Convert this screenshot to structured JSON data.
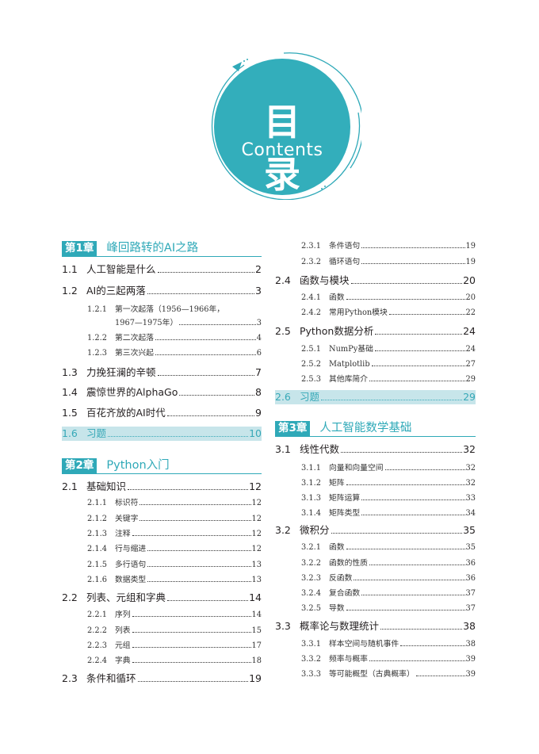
{
  "header": {
    "title": "目录",
    "subtitle": "Contents"
  },
  "colors": {
    "accent": "#2fa9b8",
    "highlight": "#c7e5ea"
  },
  "left": [
    {
      "type": "chapter",
      "tag": "第1章",
      "title": "峰回路转的AI之路"
    },
    {
      "level": 1,
      "num": "1.1",
      "title": "人工智能是什么",
      "page": "2"
    },
    {
      "level": 1,
      "num": "1.2",
      "title": "AI的三起两落",
      "page": "3"
    },
    {
      "level": 2,
      "num": "1.2.1",
      "title": "第一次起落（1956—1966年，",
      "page": ""
    },
    {
      "level": 2,
      "num": "",
      "title": "1967—1975年）",
      "page": "3"
    },
    {
      "level": 2,
      "num": "1.2.2",
      "title": "第二次起落",
      "page": "4"
    },
    {
      "level": 2,
      "num": "1.2.3",
      "title": "第三次兴起",
      "page": "6"
    },
    {
      "level": 1,
      "num": "1.3",
      "title": "力挽狂澜的辛顿",
      "page": "7"
    },
    {
      "level": 1,
      "num": "1.4",
      "title": "震惊世界的AlphaGo",
      "page": "8"
    },
    {
      "level": 1,
      "num": "1.5",
      "title": "百花齐放的AI时代",
      "page": "9"
    },
    {
      "level": 1,
      "num": "1.6",
      "title": "习题",
      "page": "10",
      "highlight": true
    },
    {
      "type": "chapter",
      "tag": "第2章",
      "title": "Python入门"
    },
    {
      "level": 1,
      "num": "2.1",
      "title": "基础知识",
      "page": "12"
    },
    {
      "level": 2,
      "num": "2.1.1",
      "title": "标识符",
      "page": "12"
    },
    {
      "level": 2,
      "num": "2.1.2",
      "title": "关键字",
      "page": "12"
    },
    {
      "level": 2,
      "num": "2.1.3",
      "title": "注释",
      "page": "12"
    },
    {
      "level": 2,
      "num": "2.1.4",
      "title": "行与缩进",
      "page": "12"
    },
    {
      "level": 2,
      "num": "2.1.5",
      "title": "多行语句",
      "page": "13"
    },
    {
      "level": 2,
      "num": "2.1.6",
      "title": "数据类型",
      "page": "13"
    },
    {
      "level": 1,
      "num": "2.2",
      "title": "列表、元组和字典",
      "page": "14"
    },
    {
      "level": 2,
      "num": "2.2.1",
      "title": "序列",
      "page": "14"
    },
    {
      "level": 2,
      "num": "2.2.2",
      "title": "列表",
      "page": "15"
    },
    {
      "level": 2,
      "num": "2.2.3",
      "title": "元组",
      "page": "17"
    },
    {
      "level": 2,
      "num": "2.2.4",
      "title": "字典",
      "page": "18"
    },
    {
      "level": 1,
      "num": "2.3",
      "title": "条件和循环",
      "page": "19"
    }
  ],
  "right": [
    {
      "level": 2,
      "num": "2.3.1",
      "title": "条件语句",
      "page": "19"
    },
    {
      "level": 2,
      "num": "2.3.2",
      "title": "循环语句",
      "page": "19"
    },
    {
      "level": 1,
      "num": "2.4",
      "title": "函数与模块",
      "page": "20"
    },
    {
      "level": 2,
      "num": "2.4.1",
      "title": "函数",
      "page": "20"
    },
    {
      "level": 2,
      "num": "2.4.2",
      "title": "常用Python模块",
      "page": "22"
    },
    {
      "level": 1,
      "num": "2.5",
      "title": "Python数据分析",
      "page": "24"
    },
    {
      "level": 2,
      "num": "2.5.1",
      "title": "NumPy基础",
      "page": "24"
    },
    {
      "level": 2,
      "num": "2.5.2",
      "title": "Matplotlib",
      "page": "27"
    },
    {
      "level": 2,
      "num": "2.5.3",
      "title": "其他库简介",
      "page": "29"
    },
    {
      "level": 1,
      "num": "2.6",
      "title": "习题",
      "page": "29",
      "highlight": true
    },
    {
      "type": "chapter",
      "tag": "第3章",
      "title": "人工智能数学基础"
    },
    {
      "level": 1,
      "num": "3.1",
      "title": "线性代数",
      "page": "32"
    },
    {
      "level": 2,
      "num": "3.1.1",
      "title": "向量和向量空间",
      "page": "32"
    },
    {
      "level": 2,
      "num": "3.1.2",
      "title": "矩阵",
      "page": "32"
    },
    {
      "level": 2,
      "num": "3.1.3",
      "title": "矩阵运算",
      "page": "33"
    },
    {
      "level": 2,
      "num": "3.1.4",
      "title": "矩阵类型",
      "page": "34"
    },
    {
      "level": 1,
      "num": "3.2",
      "title": "微积分",
      "page": "35"
    },
    {
      "level": 2,
      "num": "3.2.1",
      "title": "函数",
      "page": "35"
    },
    {
      "level": 2,
      "num": "3.2.2",
      "title": "函数的性质",
      "page": "36"
    },
    {
      "level": 2,
      "num": "3.2.3",
      "title": "反函数",
      "page": "36"
    },
    {
      "level": 2,
      "num": "3.2.4",
      "title": "复合函数",
      "page": "37"
    },
    {
      "level": 2,
      "num": "3.2.5",
      "title": "导数",
      "page": "37"
    },
    {
      "level": 1,
      "num": "3.3",
      "title": "概率论与数理统计",
      "page": "38"
    },
    {
      "level": 2,
      "num": "3.3.1",
      "title": "样本空间与随机事件",
      "page": "38"
    },
    {
      "level": 2,
      "num": "3.3.2",
      "title": "频率与概率",
      "page": "39"
    },
    {
      "level": 2,
      "num": "3.3.3",
      "title": "等可能概型（古典概率）",
      "page": "39"
    }
  ]
}
